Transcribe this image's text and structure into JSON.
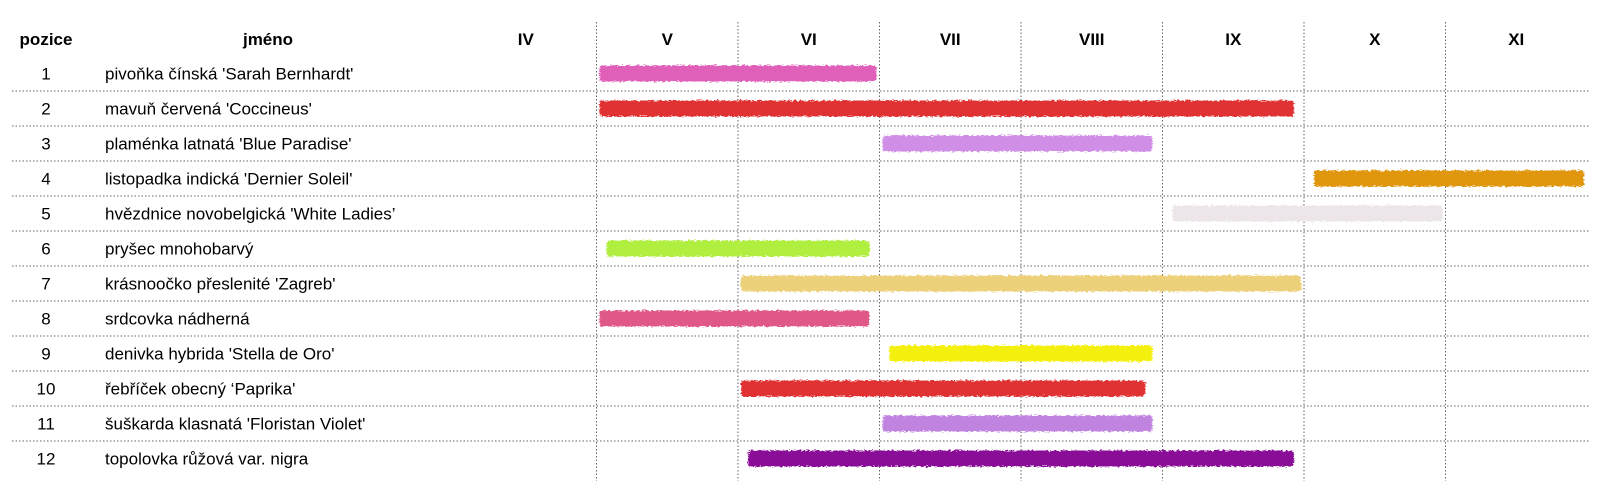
{
  "chart_data": {
    "type": "bar",
    "headers": {
      "position": "pozice",
      "name": "jméno"
    },
    "months": [
      "IV",
      "V",
      "VI",
      "VII",
      "VIII",
      "IX",
      "X",
      "XI"
    ],
    "rows": [
      {
        "position": "1",
        "name": "pivoňka čínská 'Sarah Bernhardt'",
        "start": 1.0,
        "end": 3.0,
        "color": "#e05fb8"
      },
      {
        "position": "2",
        "name": "mavuň červená 'Coccineus'",
        "start": 1.0,
        "end": 5.95,
        "color": "#e03030"
      },
      {
        "position": "3",
        "name": "plaménka latnatá 'Blue Paradise'",
        "start": 3.0,
        "end": 4.95,
        "color": "#d08ee6"
      },
      {
        "position": "4",
        "name": "listopadka indická 'Dernier Soleil'",
        "start": 6.05,
        "end": 8.0,
        "color": "#e0960c"
      },
      {
        "position": "5",
        "name": "hvězdnice novobelgická 'White Ladies’",
        "start": 5.05,
        "end": 7.0,
        "color": "#ece6ea"
      },
      {
        "position": "6",
        "name": "pryšec mnohobarvý",
        "start": 1.05,
        "end": 2.95,
        "color": "#b0ee40"
      },
      {
        "position": "7",
        "name": "krásnoočko přeslenité 'Zagreb'",
        "start": 2.0,
        "end": 6.0,
        "color": "#ecd07a"
      },
      {
        "position": "8",
        "name": "srdcovka nádherná",
        "start": 1.0,
        "end": 2.95,
        "color": "#e05888"
      },
      {
        "position": "9",
        "name": "denivka hybrida 'Stella de Oro'",
        "start": 3.05,
        "end": 4.95,
        "color": "#f4f00c"
      },
      {
        "position": "10",
        "name": "řebříček obecný ‘Paprika'",
        "start": 2.0,
        "end": 4.9,
        "color": "#e03030"
      },
      {
        "position": "11",
        "name": "šuškarda klasnatá 'Floristan Violet'",
        "start": 3.0,
        "end": 4.95,
        "color": "#c084e0"
      },
      {
        "position": "12",
        "name": "topolovka růžová var. nigra",
        "start": 2.05,
        "end": 5.95,
        "color": "#8a0898"
      }
    ]
  }
}
